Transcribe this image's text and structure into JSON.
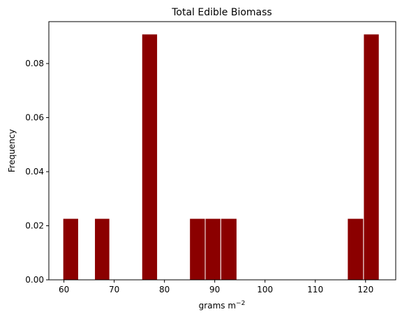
{
  "chart_data": {
    "type": "histogram",
    "title": "Total Edible Biomass",
    "xlabel": "grams m",
    "xlabel_superscript": "−2",
    "ylabel": "Frequency",
    "xlim": [
      57,
      126
    ],
    "ylim": [
      0,
      0.0955
    ],
    "xticks": [
      60,
      70,
      80,
      90,
      100,
      110,
      120
    ],
    "yticks": [
      0.0,
      0.02,
      0.04,
      0.06,
      0.08
    ],
    "ytick_labels": [
      "0.00",
      "0.02",
      "0.04",
      "0.06",
      "0.08"
    ],
    "bins": [
      {
        "x0": 59.8,
        "x1": 62.9,
        "value": 0.0227
      },
      {
        "x0": 66.1,
        "x1": 69.1,
        "value": 0.0227
      },
      {
        "x0": 75.5,
        "x1": 78.6,
        "value": 0.0909
      },
      {
        "x0": 85.0,
        "x1": 88.1,
        "value": 0.0227
      },
      {
        "x0": 88.1,
        "x1": 91.2,
        "value": 0.0227
      },
      {
        "x0": 91.2,
        "x1": 94.4,
        "value": 0.0227
      },
      {
        "x0": 116.4,
        "x1": 119.6,
        "value": 0.0227
      },
      {
        "x0": 119.6,
        "x1": 122.7,
        "value": 0.0909
      }
    ],
    "bar_color": "#8b0000",
    "edge_color": "#ffffff"
  }
}
